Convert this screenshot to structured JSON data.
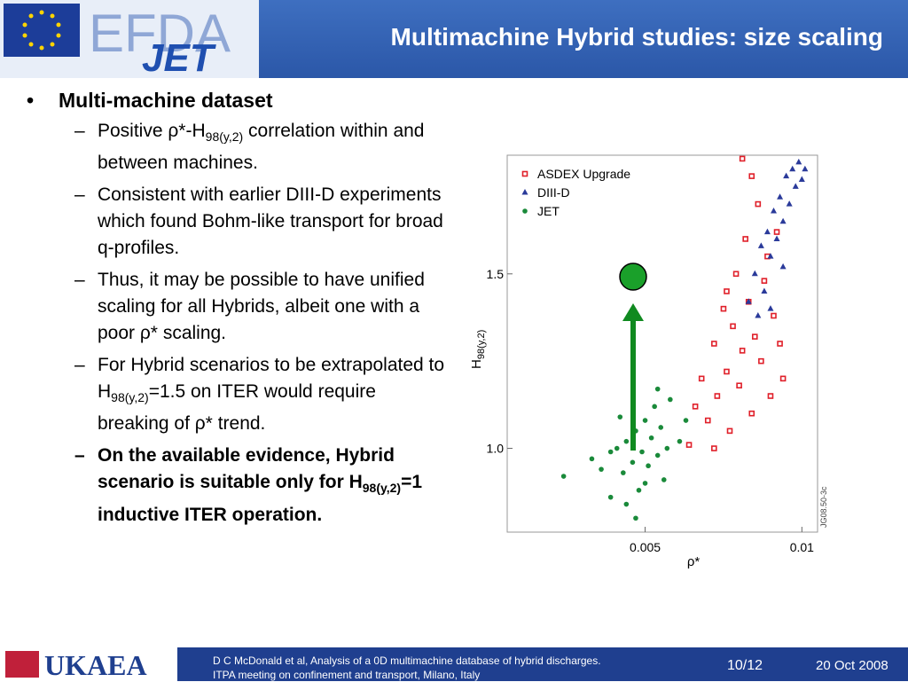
{
  "header": {
    "logo_main": "EFDA",
    "logo_sub": "JET",
    "title": "Multimachine Hybrid studies: size scaling"
  },
  "bullet": {
    "text": "Multi-machine dataset",
    "items": [
      {
        "parts": [
          "Positive ρ*-H",
          "98(y,2)",
          " correlation within and between machines."
        ]
      },
      {
        "parts": [
          "Consistent with earlier DIII-D experiments which found Bohm-like transport for broad q-profiles."
        ]
      },
      {
        "parts": [
          "Thus, it may be possible to have unified scaling for all Hybrids, albeit one with a poor ρ* scaling."
        ]
      },
      {
        "parts": [
          "For Hybrid scenarios to be extrapolated to H",
          "98(y,2)",
          "=1.5 on ITER would require breaking of ρ* trend."
        ]
      },
      {
        "bold": true,
        "parts": [
          "On the available evidence, Hybrid scenario is suitable only for H",
          "98(y,2)",
          "=1 inductive ITER operation."
        ]
      }
    ]
  },
  "chart_data": {
    "type": "scatter",
    "x_label": "ρ*",
    "y_label": {
      "main": "H",
      "sub": "98(y,2)"
    },
    "figure_id": "JG08.50-3c",
    "xlim": [
      0.0006,
      0.0105
    ],
    "xticks": [
      0.005,
      0.01
    ],
    "ylim": [
      0.76,
      1.84
    ],
    "yticks": [
      {
        "value": 1,
        "label": "1.0"
      },
      1.5
    ],
    "legend": "upper left",
    "series": [
      {
        "name": "ASDEX Upgrade",
        "color": "#e0202a",
        "marker": "square",
        "x": [
          0.0064,
          0.0066,
          0.0068,
          0.007,
          0.0072,
          0.0073,
          0.0075,
          0.0076,
          0.0077,
          0.0078,
          0.0079,
          0.008,
          0.0081,
          0.0082,
          0.0083,
          0.0084,
          0.0085,
          0.0086,
          0.0087,
          0.0088,
          0.0089,
          0.009,
          0.0091,
          0.0092,
          0.0093,
          0.0081,
          0.0084,
          0.0076,
          0.0072,
          0.0094
        ],
        "values": [
          1.01,
          1.12,
          1.2,
          1.08,
          1.3,
          1.15,
          1.4,
          1.22,
          1.05,
          1.35,
          1.5,
          1.18,
          1.28,
          1.6,
          1.42,
          1.1,
          1.32,
          1.7,
          1.25,
          1.48,
          1.55,
          1.15,
          1.38,
          1.62,
          1.3,
          1.83,
          1.78,
          1.45,
          1.0,
          1.2
        ]
      },
      {
        "name": "DIII-D",
        "color": "#2a3a9a",
        "marker": "triangle",
        "x": [
          0.0083,
          0.0085,
          0.0087,
          0.0088,
          0.0089,
          0.009,
          0.0091,
          0.0092,
          0.0093,
          0.0094,
          0.0095,
          0.0096,
          0.0097,
          0.0098,
          0.0099,
          0.01,
          0.0101,
          0.009,
          0.0094,
          0.0086
        ],
        "values": [
          1.42,
          1.5,
          1.58,
          1.45,
          1.62,
          1.55,
          1.68,
          1.6,
          1.72,
          1.65,
          1.78,
          1.7,
          1.8,
          1.75,
          1.82,
          1.77,
          1.8,
          1.4,
          1.52,
          1.38
        ]
      },
      {
        "name": "JET",
        "color": "#1a8a3a",
        "marker": "circle",
        "x": [
          0.0024,
          0.0033,
          0.0036,
          0.0039,
          0.0041,
          0.0043,
          0.0044,
          0.0046,
          0.0047,
          0.0048,
          0.0049,
          0.005,
          0.0051,
          0.0052,
          0.0053,
          0.0054,
          0.0055,
          0.0056,
          0.0057,
          0.0058,
          0.0044,
          0.0047,
          0.0039,
          0.0061,
          0.0054,
          0.0042,
          0.005,
          0.0063
        ],
        "values": [
          0.92,
          0.97,
          0.94,
          0.99,
          1.0,
          0.93,
          1.02,
          0.96,
          1.05,
          0.88,
          0.99,
          1.08,
          0.95,
          1.03,
          1.12,
          0.98,
          1.06,
          0.91,
          1.0,
          1.14,
          0.84,
          0.8,
          0.86,
          1.02,
          1.17,
          1.09,
          0.9,
          1.08
        ]
      }
    ]
  },
  "footer": {
    "logo": "UKAEA",
    "line1": "D C McDonald et al, Analysis of a 0D multimachine database of hybrid discharges.",
    "line2": "ITPA meeting on confinement and transport, Milano, Italy",
    "page": "10/12",
    "date": "20 Oct 2008"
  }
}
